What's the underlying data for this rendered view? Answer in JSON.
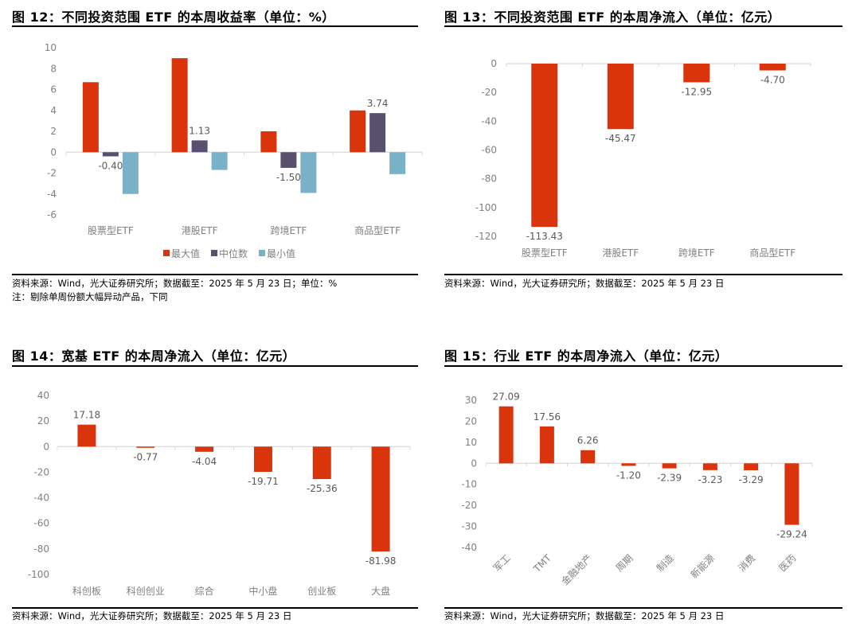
{
  "colors": {
    "red": "#d9340b",
    "purple": "#58506e",
    "teal": "#79b2c6",
    "axis": "#d9d9d9",
    "tick": "#808080"
  },
  "source_text": "资料来源：Wind，光大证券研究所；数据截至：2025 年 5 月 23 日",
  "fig12": {
    "title": "图 12：不同投资范围 ETF 的本周收益率（单位：%）",
    "source": "资料来源：Wind，光大证券研究所；数据截至：2025 年 5 月 23 日；单位：%",
    "note": "注：剔除单周份额大幅异动产品，下同",
    "legend": [
      "最大值",
      "中位数",
      "最小值"
    ]
  },
  "fig13": {
    "title": "图 13：不同投资范围 ETF 的本周净流入（单位：亿元）",
    "source": "资料来源：Wind，光大证券研究所；数据截至：2025 年 5 月 23 日"
  },
  "fig14": {
    "title": "图 14：宽基 ETF 的本周净流入（单位：亿元）",
    "source": "资料来源：Wind，光大证券研究所；数据截至：2025 年 5 月 23 日"
  },
  "fig15": {
    "title": "图 15：行业 ETF 的本周净流入（单位：亿元）",
    "source": "资料来源：Wind，光大证券研究所；数据截至：2025 年 5 月 23 日"
  },
  "chart_data": [
    {
      "id": "fig12",
      "type": "bar",
      "title": "图 12：不同投资范围 ETF 的本周收益率（单位：%）",
      "categories": [
        "股票型ETF",
        "港股ETF",
        "跨境ETF",
        "商品型ETF"
      ],
      "series": [
        {
          "name": "最大值",
          "color": "#d9340b",
          "values": [
            6.7,
            9.0,
            2.0,
            4.0
          ]
        },
        {
          "name": "中位数",
          "color": "#58506e",
          "values": [
            -0.4,
            1.13,
            -1.5,
            3.74
          ],
          "labels": [
            "-0.40",
            "1.13",
            "-1.50",
            "3.74"
          ]
        },
        {
          "name": "最小值",
          "color": "#79b2c6",
          "values": [
            -4.0,
            -1.7,
            -3.9,
            -2.1
          ]
        }
      ],
      "yticks": [
        10,
        8,
        6,
        4,
        2,
        0,
        -2,
        -4,
        -6
      ],
      "ylim": [
        -6,
        10
      ],
      "xlabel": "",
      "ylabel": "",
      "legend_position": "bottom",
      "grid": false
    },
    {
      "id": "fig13",
      "type": "bar",
      "title": "图 13：不同投资范围 ETF 的本周净流入（单位：亿元）",
      "categories": [
        "股票型ETF",
        "港股ETF",
        "跨境ETF",
        "商品型ETF"
      ],
      "values": [
        -113.43,
        -45.47,
        -12.95,
        -4.7
      ],
      "labels": [
        "-113.43",
        "-45.47",
        "-12.95",
        "-4.70"
      ],
      "yticks": [
        0,
        -20,
        -40,
        -60,
        -80,
        -100,
        -120
      ],
      "ylim": [
        -120,
        0
      ],
      "xlabel": "",
      "ylabel": "",
      "grid": false
    },
    {
      "id": "fig14",
      "type": "bar",
      "title": "图 14：宽基 ETF 的本周净流入（单位：亿元）",
      "categories": [
        "科创板",
        "科创创业",
        "综合",
        "中小盘",
        "创业板",
        "大盘"
      ],
      "values": [
        17.18,
        -0.77,
        -4.04,
        -19.71,
        -25.36,
        -81.98
      ],
      "labels": [
        "17.18",
        "-0.77",
        "-4.04",
        "-19.71",
        "-25.36",
        "-81.98"
      ],
      "yticks": [
        40,
        20,
        0,
        -20,
        -40,
        -60,
        -80,
        -100
      ],
      "ylim": [
        -100,
        40
      ],
      "xlabel": "",
      "ylabel": "",
      "grid": false
    },
    {
      "id": "fig15",
      "type": "bar",
      "title": "图 15：行业 ETF 的本周净流入（单位：亿元）",
      "categories": [
        "军工",
        "TMT",
        "金融地产",
        "周期",
        "制造",
        "新能源",
        "消费",
        "医药"
      ],
      "values": [
        27.09,
        17.56,
        6.26,
        -1.2,
        -2.39,
        -3.23,
        -3.29,
        -29.24
      ],
      "labels": [
        "27.09",
        "17.56",
        "6.26",
        "-1.20",
        "-2.39",
        "-3.23",
        "-3.29",
        "-29.24"
      ],
      "yticks": [
        30,
        20,
        10,
        0,
        -10,
        -20,
        -30,
        -40
      ],
      "ylim": [
        -40,
        30
      ],
      "xlabel": "",
      "ylabel": "",
      "x_tick_rotation": -45,
      "grid": false
    }
  ]
}
